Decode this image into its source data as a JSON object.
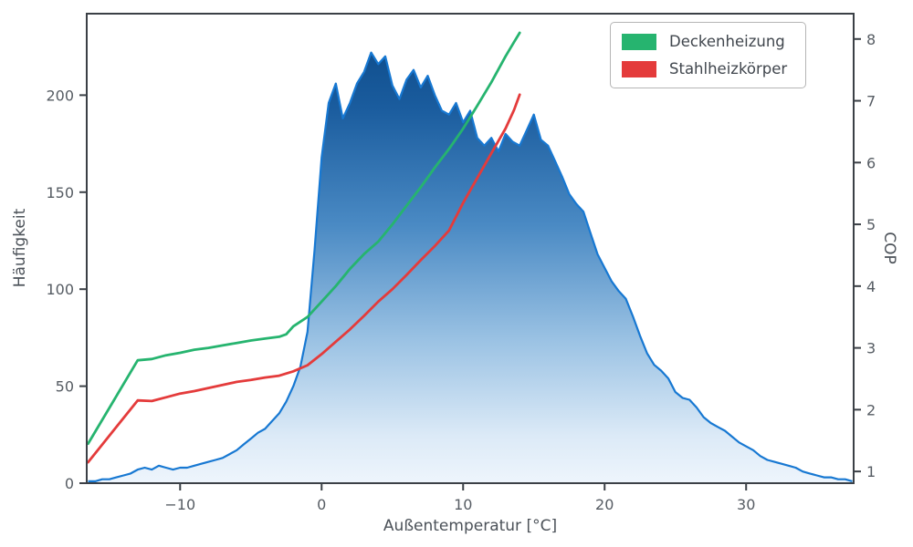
{
  "figure": {
    "background": "#ffffff"
  },
  "style": {
    "spine_color": "#3b4046",
    "tick_color": "#565c63",
    "label_color": "#4b5158",
    "legend_border": "#b5b5b5"
  },
  "legend": {
    "items": [
      {
        "label": "Deckenheizung",
        "color": "#26b46f"
      },
      {
        "label": "Stahlheizkörper",
        "color": "#e43b3b"
      }
    ]
  },
  "chart_data": {
    "type": "area+line",
    "title": "",
    "x_label": "Außentemperatur [°C]",
    "y_left_label": "Häufigkeit",
    "y_right_label": "COP",
    "xlim": [
      -16.6,
      37.6
    ],
    "ylim_left": [
      0,
      242
    ],
    "ylim_right": [
      0.81,
      8.41
    ],
    "grid": false,
    "legend_position": "upper right",
    "x_ticks": {
      "values": [
        -10,
        0,
        10,
        20,
        30
      ],
      "labels": [
        "−10",
        "0",
        "10",
        "20",
        "30"
      ]
    },
    "y_left_ticks": {
      "values": [
        0,
        50,
        100,
        150,
        200
      ],
      "labels": [
        "0",
        "50",
        "100",
        "150",
        "200"
      ]
    },
    "y_right_ticks": {
      "values": [
        1,
        2,
        3,
        4,
        5,
        6,
        7,
        8
      ],
      "labels": [
        "1",
        "2",
        "3",
        "4",
        "5",
        "6",
        "7",
        "8"
      ]
    },
    "gradient_stops": [
      {
        "offset": "0%",
        "color": "#0a4784"
      },
      {
        "offset": "20%",
        "color": "#1a5c9e"
      },
      {
        "offset": "45%",
        "color": "#4a8ac4"
      },
      {
        "offset": "70%",
        "color": "#9cc3e4"
      },
      {
        "offset": "90%",
        "color": "#dceaf7"
      },
      {
        "offset": "100%",
        "color": "#eef5fc"
      }
    ],
    "histogram": {
      "name": "Häufigkeit",
      "axis": "left",
      "color": "#1778d2",
      "x": [
        -16.5,
        -16,
        -15.5,
        -15,
        -14.5,
        -14,
        -13.5,
        -13,
        -12.5,
        -12,
        -11.5,
        -11,
        -10.5,
        -10,
        -9.5,
        -9,
        -8.5,
        -8,
        -7.5,
        -7,
        -6.5,
        -6,
        -5.5,
        -5,
        -4.5,
        -4,
        -3.5,
        -3,
        -2.5,
        -2,
        -1.5,
        -1,
        -0.5,
        0,
        0.5,
        1,
        1.5,
        2,
        2.5,
        3,
        3.5,
        4,
        4.5,
        5,
        5.5,
        6,
        6.5,
        7,
        7.5,
        8,
        8.5,
        9,
        9.5,
        10,
        10.5,
        11,
        11.5,
        12,
        12.5,
        13,
        13.5,
        14,
        14.5,
        15,
        15.5,
        16,
        16.5,
        17,
        17.5,
        18,
        18.5,
        19,
        19.5,
        20,
        20.5,
        21,
        21.5,
        22,
        22.5,
        23,
        23.5,
        24,
        24.5,
        25,
        25.5,
        26,
        26.5,
        27,
        27.5,
        28,
        28.5,
        29,
        29.5,
        30,
        30.5,
        31,
        31.5,
        32,
        32.5,
        33,
        33.5,
        34,
        34.5,
        35,
        35.5,
        36,
        36.5,
        37,
        37.5
      ],
      "y": [
        1,
        1,
        2,
        2,
        3,
        4,
        5,
        7,
        8,
        7,
        9,
        8,
        7,
        8,
        8,
        9,
        10,
        11,
        12,
        13,
        15,
        17,
        20,
        23,
        26,
        28,
        32,
        36,
        42,
        50,
        60,
        78,
        120,
        168,
        196,
        206,
        188,
        196,
        206,
        212,
        222,
        216,
        220,
        205,
        198,
        208,
        213,
        204,
        210,
        200,
        192,
        190,
        196,
        186,
        192,
        178,
        174,
        178,
        171,
        180,
        176,
        174,
        182,
        190,
        177,
        174,
        166,
        158,
        149,
        144,
        140,
        129,
        118,
        111,
        104,
        99,
        95,
        86,
        76,
        67,
        61,
        58,
        54,
        47,
        44,
        43,
        39,
        34,
        31,
        29,
        27,
        24,
        21,
        19,
        17,
        14,
        12,
        11,
        10,
        9,
        8,
        6,
        5,
        4,
        3,
        3,
        2,
        2,
        1
      ]
    },
    "series": [
      {
        "name": "Deckenheizung",
        "axis": "right",
        "color": "#26b46f",
        "x": [
          -16.5,
          -13,
          -12,
          -11,
          -10,
          -9,
          -8,
          -7,
          -6,
          -5,
          -4,
          -3,
          -2.5,
          -2,
          -1,
          0,
          1,
          2,
          3,
          4,
          5,
          6,
          7,
          8,
          9,
          10,
          11,
          12,
          13,
          13.6,
          14
        ],
        "y": [
          1.45,
          2.8,
          2.82,
          2.88,
          2.92,
          2.97,
          3.0,
          3.04,
          3.08,
          3.12,
          3.15,
          3.18,
          3.22,
          3.35,
          3.5,
          3.75,
          4.0,
          4.28,
          4.52,
          4.72,
          5.0,
          5.3,
          5.6,
          5.92,
          6.22,
          6.55,
          6.92,
          7.3,
          7.72,
          7.95,
          8.1
        ]
      },
      {
        "name": "Stahlheizkörper",
        "axis": "right",
        "color": "#e43b3b",
        "x": [
          -16.5,
          -13,
          -12,
          -11,
          -10,
          -9,
          -8,
          -7,
          -6,
          -5,
          -4,
          -3,
          -2,
          -1,
          0,
          1,
          2,
          3,
          4,
          5,
          6,
          7,
          8,
          9,
          10,
          11,
          12,
          13,
          13.6,
          14
        ],
        "y": [
          1.15,
          2.15,
          2.14,
          2.2,
          2.26,
          2.3,
          2.35,
          2.4,
          2.45,
          2.48,
          2.52,
          2.55,
          2.62,
          2.72,
          2.9,
          3.1,
          3.3,
          3.52,
          3.75,
          3.95,
          4.18,
          4.42,
          4.65,
          4.9,
          5.35,
          5.75,
          6.15,
          6.55,
          6.85,
          7.1
        ]
      }
    ]
  }
}
